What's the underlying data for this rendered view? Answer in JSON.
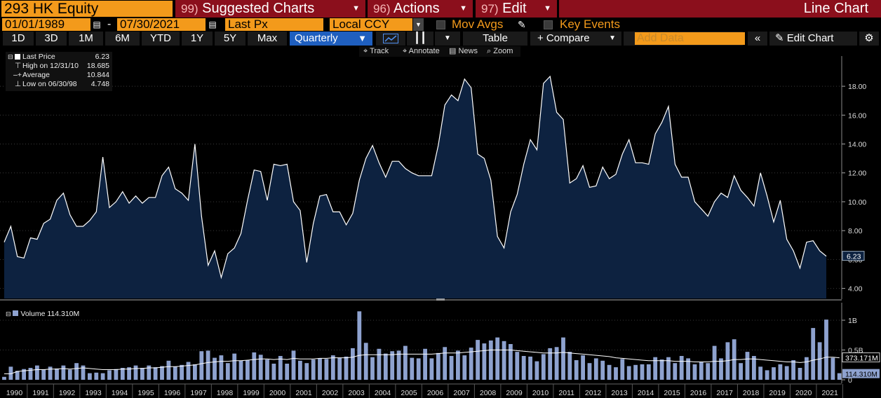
{
  "header": {
    "ticker": "293 HK Equity",
    "menus": [
      {
        "num": "99)",
        "label": "Suggested Charts"
      },
      {
        "num": "96)",
        "label": "Actions"
      },
      {
        "num": "97)",
        "label": "Edit"
      }
    ],
    "chart_title": "Line Chart"
  },
  "controls": {
    "start_date": "01/01/1989",
    "date_sep": "-",
    "end_date": "07/30/2021",
    "field": "Last Px",
    "currency": "Local CCY",
    "mov_avgs": "Mov Avgs",
    "key_events": "Key Events"
  },
  "toolbar": {
    "ranges": [
      "1D",
      "3D",
      "1M",
      "6M",
      "YTD",
      "1Y",
      "5Y",
      "Max"
    ],
    "period": "Quarterly",
    "table": "Table",
    "compare": "+ Compare",
    "add_data_placeholder": "Add Data",
    "edit_chart": "Edit Chart"
  },
  "subtoolbar": {
    "track": "Track",
    "annotate": "Annotate",
    "news": "News",
    "zoom": "Zoom"
  },
  "legend": {
    "last_price_label": "Last Price",
    "last_price_value": "6.23",
    "high_label": "High on 12/31/10",
    "high_value": "18.685",
    "average_label": "Average",
    "average_value": "10.844",
    "low_label": "Low on 06/30/98",
    "low_value": "4.748"
  },
  "volume_legend": {
    "label": "Volume",
    "value": "114.310M"
  },
  "colors": {
    "orange": "#f39a1b",
    "menu_red": "#8b0f1c",
    "area_fill": "#0d2240",
    "line": "#ffffff",
    "bar": "#8ea2cf",
    "active_blue": "#1f5fbf"
  },
  "chart_data": [
    {
      "type": "area",
      "series_name": "Last Price",
      "x_start": "1989 Q1",
      "frequency": "quarterly",
      "y_ticks": [
        "4.00",
        "6.00",
        "8.00",
        "10.00",
        "12.00",
        "14.00",
        "16.00",
        "18.00"
      ],
      "ylim": [
        3.3,
        19.8
      ],
      "last_value_label": "6.23",
      "values": [
        7.2,
        8.3,
        6.2,
        6.1,
        7.5,
        7.4,
        8.5,
        8.8,
        10.1,
        10.6,
        9.1,
        8.3,
        8.3,
        8.7,
        9.3,
        13.1,
        9.6,
        10.0,
        10.7,
        9.9,
        10.4,
        9.9,
        10.3,
        10.3,
        11.8,
        12.4,
        10.9,
        10.6,
        10.1,
        14.0,
        9.0,
        5.6,
        6.6,
        4.75,
        6.4,
        6.8,
        7.8,
        10.1,
        12.2,
        12.1,
        10.1,
        12.6,
        12.5,
        12.6,
        10.0,
        9.4,
        5.8,
        8.5,
        10.4,
        10.5,
        9.3,
        9.3,
        8.4,
        9.2,
        11.5,
        13.0,
        13.9,
        12.7,
        11.7,
        12.8,
        12.8,
        12.3,
        12.0,
        11.8,
        11.8,
        11.8,
        13.9,
        16.7,
        17.4,
        17.0,
        18.5,
        17.9,
        13.3,
        13.0,
        11.5,
        7.6,
        6.8,
        9.3,
        10.5,
        12.6,
        14.3,
        13.6,
        18.2,
        18.685,
        16.2,
        15.7,
        11.3,
        11.6,
        12.5,
        11.0,
        11.1,
        12.4,
        11.6,
        11.9,
        13.3,
        14.3,
        12.7,
        12.7,
        12.6,
        14.7,
        15.5,
        16.6,
        12.6,
        11.7,
        11.7,
        10.0,
        9.5,
        9.0,
        10.0,
        10.6,
        10.3,
        11.8,
        10.8,
        10.3,
        9.7,
        12.0,
        10.4,
        8.6,
        10.1,
        7.4,
        6.6,
        5.4,
        7.2,
        7.3,
        6.6,
        6.23
      ],
      "x_ticks": [
        "1990",
        "1991",
        "1992",
        "1993",
        "1994",
        "1995",
        "1996",
        "1997",
        "1998",
        "1999",
        "2000",
        "2001",
        "2002",
        "2003",
        "2004",
        "2005",
        "2006",
        "2007",
        "2008",
        "2009",
        "2010",
        "2011",
        "2012",
        "2013",
        "2014",
        "2015",
        "2016",
        "2017",
        "2018",
        "2019",
        "2020",
        "2021"
      ]
    },
    {
      "type": "bar",
      "series_name": "Volume",
      "y_ticks": [
        "0",
        "0.5B",
        "1B"
      ],
      "ylim": [
        0,
        1.2
      ],
      "last_value_label": "114.310M",
      "ma_label": "373.171M",
      "values": [
        0.05,
        0.22,
        0.15,
        0.18,
        0.2,
        0.24,
        0.17,
        0.22,
        0.19,
        0.24,
        0.17,
        0.28,
        0.24,
        0.11,
        0.12,
        0.11,
        0.16,
        0.18,
        0.2,
        0.21,
        0.24,
        0.2,
        0.24,
        0.21,
        0.23,
        0.32,
        0.22,
        0.25,
        0.3,
        0.26,
        0.48,
        0.49,
        0.37,
        0.41,
        0.28,
        0.44,
        0.32,
        0.33,
        0.46,
        0.42,
        0.34,
        0.27,
        0.4,
        0.27,
        0.49,
        0.32,
        0.28,
        0.34,
        0.36,
        0.35,
        0.41,
        0.37,
        0.39,
        0.53,
        1.15,
        0.62,
        0.38,
        0.52,
        0.44,
        0.48,
        0.49,
        0.57,
        0.37,
        0.36,
        0.52,
        0.36,
        0.45,
        0.55,
        0.4,
        0.49,
        0.41,
        0.54,
        0.67,
        0.61,
        0.66,
        0.71,
        0.65,
        0.6,
        0.47,
        0.4,
        0.39,
        0.31,
        0.43,
        0.53,
        0.55,
        0.71,
        0.47,
        0.33,
        0.41,
        0.28,
        0.36,
        0.32,
        0.25,
        0.21,
        0.35,
        0.23,
        0.25,
        0.26,
        0.26,
        0.38,
        0.34,
        0.38,
        0.28,
        0.4,
        0.36,
        0.26,
        0.3,
        0.28,
        0.57,
        0.36,
        0.63,
        0.68,
        0.28,
        0.47,
        0.4,
        0.22,
        0.16,
        0.21,
        0.26,
        0.23,
        0.33,
        0.2,
        0.38,
        0.87,
        0.63,
        1.01,
        0.37,
        0.11
      ],
      "ma": [
        0.1,
        0.1,
        0.14,
        0.15,
        0.16,
        0.17,
        0.17,
        0.18,
        0.18,
        0.19,
        0.18,
        0.19,
        0.2,
        0.19,
        0.18,
        0.17,
        0.17,
        0.17,
        0.18,
        0.18,
        0.19,
        0.19,
        0.2,
        0.2,
        0.21,
        0.22,
        0.22,
        0.23,
        0.24,
        0.25,
        0.27,
        0.29,
        0.3,
        0.31,
        0.31,
        0.32,
        0.32,
        0.33,
        0.34,
        0.35,
        0.35,
        0.34,
        0.35,
        0.34,
        0.36,
        0.35,
        0.35,
        0.35,
        0.36,
        0.36,
        0.37,
        0.37,
        0.37,
        0.38,
        0.41,
        0.42,
        0.42,
        0.42,
        0.42,
        0.42,
        0.43,
        0.43,
        0.43,
        0.43,
        0.43,
        0.43,
        0.44,
        0.45,
        0.45,
        0.45,
        0.46,
        0.47,
        0.48,
        0.49,
        0.5,
        0.5,
        0.5,
        0.5,
        0.49,
        0.48,
        0.47,
        0.46,
        0.45,
        0.45,
        0.45,
        0.46,
        0.45,
        0.44,
        0.43,
        0.42,
        0.41,
        0.4,
        0.39,
        0.37,
        0.36,
        0.35,
        0.34,
        0.33,
        0.32,
        0.32,
        0.32,
        0.32,
        0.31,
        0.31,
        0.31,
        0.3,
        0.3,
        0.3,
        0.31,
        0.31,
        0.32,
        0.34,
        0.34,
        0.35,
        0.35,
        0.34,
        0.33,
        0.32,
        0.31,
        0.3,
        0.3,
        0.29,
        0.3,
        0.33,
        0.35,
        0.38,
        0.38,
        0.37
      ]
    }
  ]
}
